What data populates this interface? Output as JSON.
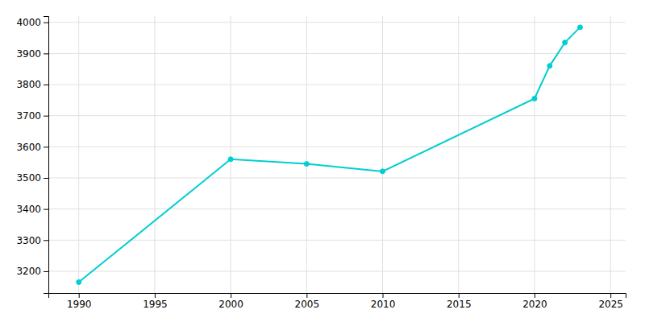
{
  "chart_data": {
    "type": "line",
    "x": [
      1990,
      2000,
      2005,
      2010,
      2020,
      2021,
      2022,
      2023
    ],
    "values": [
      3165,
      3560,
      3545,
      3521,
      3755,
      3860,
      3935,
      3984
    ],
    "color": "#00CED1",
    "marker": "circle",
    "xlim": [
      1988,
      2026
    ],
    "ylim": [
      3130,
      4020
    ],
    "xticks": [
      1990,
      1995,
      2000,
      2005,
      2010,
      2015,
      2020,
      2025
    ],
    "yticks": [
      3200,
      3300,
      3400,
      3500,
      3600,
      3700,
      3800,
      3900,
      4000
    ],
    "grid": true
  }
}
